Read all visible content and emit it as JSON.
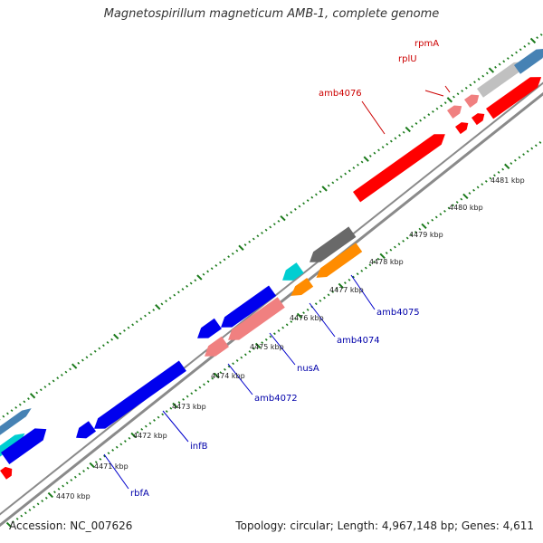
{
  "title": "Magnetospirillum magneticum AMB-1, complete genome",
  "accession": "Accession: NC_007626",
  "summary": "Topology: circular; Length: 4,967,148 bp; Genes: 4,611",
  "colors": {
    "backbone": "#8a8a8a",
    "tick": "#1a7a1a",
    "label_forward": "#cc0000",
    "label_reverse": "#0000aa",
    "leader_forward": "#cc0000",
    "leader_reverse": "#0000cc"
  },
  "scale_labels": [
    "4470 kbp",
    "4471 kbp",
    "4472 kbp",
    "4473 kbp",
    "4474 kbp",
    "4475 kbp",
    "4476 kbp",
    "4477 kbp",
    "4478 kbp",
    "4479 kbp",
    "4480 kbp",
    "4481 kbp"
  ],
  "gene_labels": [
    {
      "text": "rpmA",
      "strand": "forward"
    },
    {
      "text": "rplU",
      "strand": "forward"
    },
    {
      "text": "amb4076",
      "strand": "forward"
    },
    {
      "text": "amb4075",
      "strand": "reverse"
    },
    {
      "text": "amb4074",
      "strand": "reverse"
    },
    {
      "text": "nusA",
      "strand": "reverse"
    },
    {
      "text": "amb4072",
      "strand": "reverse"
    },
    {
      "text": "infB",
      "strand": "reverse"
    },
    {
      "text": "rbfA",
      "strand": "reverse"
    }
  ],
  "features": [
    {
      "color": "#ff0000",
      "strand": "forward"
    },
    {
      "color": "#ff0000",
      "strand": "forward"
    },
    {
      "color": "#ff0000",
      "strand": "forward"
    },
    {
      "color": "#f08080",
      "strand": "forward"
    },
    {
      "color": "#f08080",
      "strand": "forward"
    },
    {
      "color": "#c0c0c0",
      "strand": "forward"
    },
    {
      "color": "#4682b4",
      "strand": "forward"
    },
    {
      "color": "#ff0000",
      "strand": "forward"
    },
    {
      "color": "#ff0000",
      "strand": "forward"
    },
    {
      "color": "#00ced1",
      "strand": "forward"
    },
    {
      "color": "#4682b4",
      "strand": "forward"
    },
    {
      "color": "#0000ee",
      "strand": "reverse"
    },
    {
      "color": "#0000ee",
      "strand": "reverse"
    },
    {
      "color": "#0000ee",
      "strand": "reverse"
    },
    {
      "color": "#0000ee",
      "strand": "reverse"
    },
    {
      "color": "#0000ee",
      "strand": "reverse"
    },
    {
      "color": "#00ced1",
      "strand": "reverse"
    },
    {
      "color": "#696969",
      "strand": "reverse"
    },
    {
      "color": "#ff8c00",
      "strand": "reverse"
    },
    {
      "color": "#ff8c00",
      "strand": "reverse"
    },
    {
      "color": "#f08080",
      "strand": "reverse"
    },
    {
      "color": "#f08080",
      "strand": "reverse"
    }
  ]
}
